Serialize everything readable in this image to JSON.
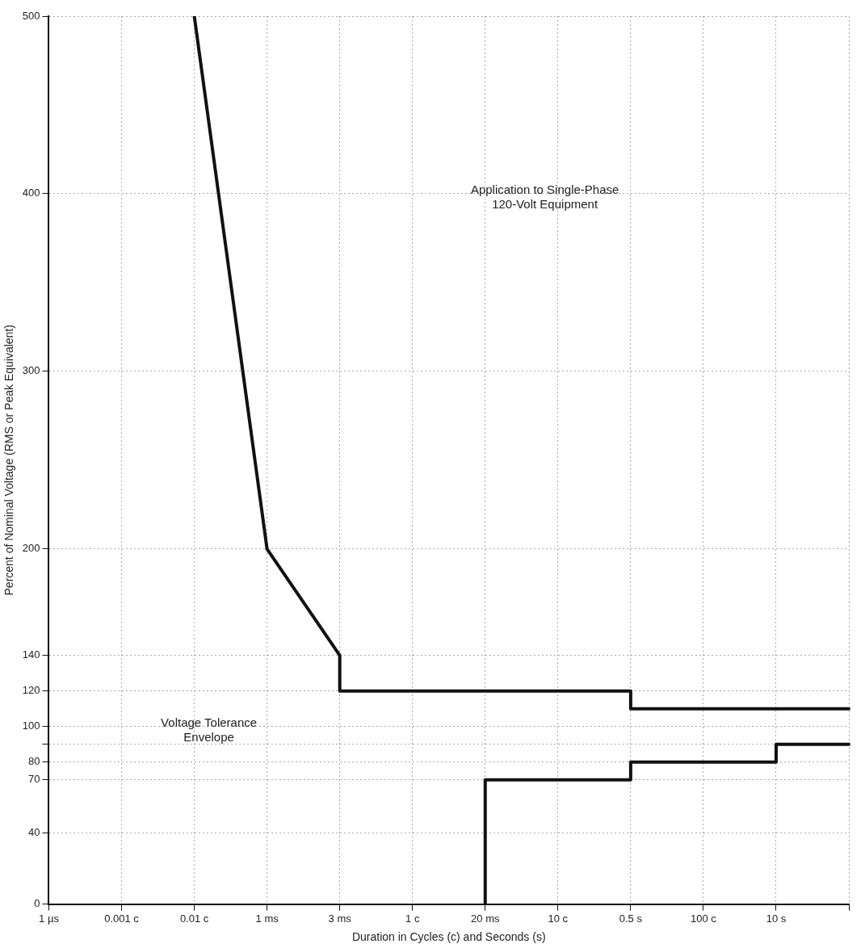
{
  "chart_data": {
    "type": "line",
    "xlabel": "Duration in Cycles (c) and Seconds (s)",
    "ylabel": "Percent of Nominal Voltage (RMS or Peak Equivalent)",
    "ylim": [
      0,
      500
    ],
    "categories": [
      "1 µs",
      "0.001 c",
      "0.01 c",
      "1 ms",
      "3 ms",
      "1 c",
      "20 ms",
      "10 c",
      "0.5 s",
      "100 c",
      "10 s",
      null
    ],
    "yticks": [
      0,
      40,
      70,
      80,
      {
        "value": 90,
        "label": null
      },
      100,
      120,
      140,
      200,
      300,
      400,
      500
    ],
    "series": [
      {
        "color": "#111111",
        "x": [
          "0.01 c",
          "1 ms",
          "3 ms",
          "3 ms",
          "0.5 s",
          "0.5 s",
          null
        ],
        "values": [
          500,
          200,
          140,
          120,
          120,
          110,
          110
        ]
      },
      {
        "color": "#111111",
        "x": [
          "20 ms",
          "20 ms",
          "0.5 s",
          "0.5 s",
          "10 s",
          "10 s",
          null
        ],
        "values": [
          0,
          70,
          70,
          80,
          80,
          90,
          90
        ]
      }
    ],
    "grid": true,
    "line_style": "solid",
    "marker": "none",
    "legend": false,
    "annotations": [
      "Application to Single-Phase\n120-Volt Equipment",
      "Voltage Tolerance\nEnvelope"
    ]
  }
}
